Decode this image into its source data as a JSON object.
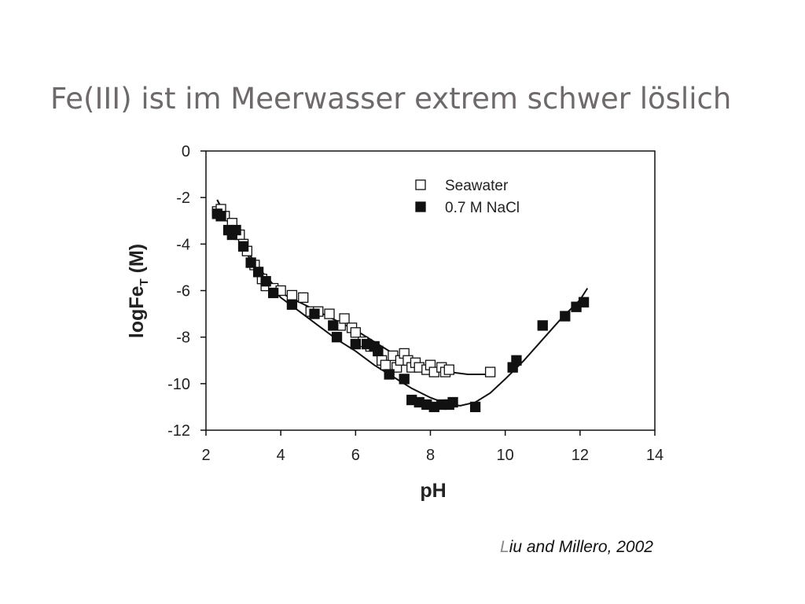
{
  "slide": {
    "title": "Fe(III) ist im Meerwasser extrem schwer löslich",
    "citation_first": "L",
    "citation_rest": "iu and Millero, 2002"
  },
  "chart_data": {
    "type": "scatter",
    "xlabel": "pH",
    "ylabel_main": "logFe",
    "ylabel_sub": "T",
    "ylabel_unit": " (M)",
    "xlim": [
      2,
      14
    ],
    "ylim": [
      -12,
      0
    ],
    "xticks": [
      2,
      4,
      6,
      8,
      10,
      12,
      14
    ],
    "yticks": [
      0,
      -2,
      -4,
      -6,
      -8,
      -10,
      -12
    ],
    "grid": false,
    "legend_position": "top-right",
    "series": [
      {
        "name": "Seawater",
        "marker": "open-square",
        "color": "#111111",
        "points": [
          [
            2.3,
            -2.6
          ],
          [
            2.4,
            -2.5
          ],
          [
            2.5,
            -2.8
          ],
          [
            2.7,
            -3.1
          ],
          [
            2.9,
            -3.6
          ],
          [
            3.0,
            -4.0
          ],
          [
            3.1,
            -4.3
          ],
          [
            3.3,
            -4.9
          ],
          [
            3.5,
            -5.5
          ],
          [
            3.6,
            -5.8
          ],
          [
            3.8,
            -5.9
          ],
          [
            4.0,
            -6.0
          ],
          [
            4.3,
            -6.2
          ],
          [
            4.6,
            -6.3
          ],
          [
            4.8,
            -6.9
          ],
          [
            5.0,
            -6.9
          ],
          [
            5.3,
            -7.0
          ],
          [
            5.6,
            -7.5
          ],
          [
            5.7,
            -7.2
          ],
          [
            5.9,
            -7.6
          ],
          [
            6.0,
            -7.8
          ],
          [
            6.2,
            -8.2
          ],
          [
            6.4,
            -8.4
          ],
          [
            6.5,
            -8.4
          ],
          [
            6.6,
            -8.6
          ],
          [
            6.7,
            -9.0
          ],
          [
            6.8,
            -9.2
          ],
          [
            7.0,
            -8.8
          ],
          [
            7.1,
            -9.3
          ],
          [
            7.2,
            -9.0
          ],
          [
            7.3,
            -8.7
          ],
          [
            7.4,
            -9.0
          ],
          [
            7.5,
            -9.3
          ],
          [
            7.6,
            -9.1
          ],
          [
            7.7,
            -9.3
          ],
          [
            7.9,
            -9.4
          ],
          [
            8.0,
            -9.2
          ],
          [
            8.1,
            -9.5
          ],
          [
            8.3,
            -9.3
          ],
          [
            8.4,
            -9.5
          ],
          [
            8.5,
            -9.4
          ],
          [
            9.6,
            -9.5
          ]
        ]
      },
      {
        "name": "0.7 M NaCl",
        "marker": "filled-square",
        "color": "#111111",
        "points": [
          [
            2.3,
            -2.7
          ],
          [
            2.4,
            -2.8
          ],
          [
            2.6,
            -3.4
          ],
          [
            2.7,
            -3.6
          ],
          [
            2.8,
            -3.4
          ],
          [
            3.0,
            -4.1
          ],
          [
            3.2,
            -4.8
          ],
          [
            3.4,
            -5.2
          ],
          [
            3.6,
            -5.6
          ],
          [
            3.8,
            -6.1
          ],
          [
            4.3,
            -6.6
          ],
          [
            4.9,
            -7.0
          ],
          [
            5.4,
            -7.5
          ],
          [
            5.5,
            -8.0
          ],
          [
            6.0,
            -8.3
          ],
          [
            6.3,
            -8.3
          ],
          [
            6.5,
            -8.4
          ],
          [
            6.6,
            -8.6
          ],
          [
            6.9,
            -9.6
          ],
          [
            7.3,
            -9.8
          ],
          [
            7.5,
            -10.7
          ],
          [
            7.7,
            -10.8
          ],
          [
            7.9,
            -10.9
          ],
          [
            8.1,
            -11.0
          ],
          [
            8.3,
            -10.9
          ],
          [
            8.5,
            -10.9
          ],
          [
            8.6,
            -10.8
          ],
          [
            9.2,
            -11.0
          ],
          [
            10.2,
            -9.3
          ],
          [
            10.3,
            -9.0
          ],
          [
            11.0,
            -7.5
          ],
          [
            11.6,
            -7.1
          ],
          [
            11.9,
            -6.7
          ],
          [
            12.1,
            -6.5
          ]
        ]
      }
    ],
    "curves": [
      {
        "name": "",
        "points": [
          [
            2.3,
            -2.1
          ],
          [
            2.6,
            -3.1
          ],
          [
            3.0,
            -4.1
          ],
          [
            3.5,
            -5.2
          ],
          [
            4.0,
            -6.1
          ],
          [
            4.5,
            -6.5
          ],
          [
            5.0,
            -6.9
          ],
          [
            5.5,
            -7.3
          ],
          [
            6.0,
            -7.7
          ],
          [
            6.5,
            -8.2
          ],
          [
            7.0,
            -8.7
          ],
          [
            7.5,
            -9.1
          ],
          [
            8.0,
            -9.4
          ],
          [
            8.5,
            -9.5
          ],
          [
            9.0,
            -9.6
          ],
          [
            9.5,
            -9.6
          ]
        ]
      },
      {
        "name": "",
        "points": [
          [
            2.3,
            -2.1
          ],
          [
            2.6,
            -3.0
          ],
          [
            3.0,
            -4.2
          ],
          [
            3.5,
            -5.4
          ],
          [
            4.0,
            -6.3
          ],
          [
            4.5,
            -6.9
          ],
          [
            5.0,
            -7.5
          ],
          [
            5.5,
            -8.1
          ],
          [
            6.0,
            -8.6
          ],
          [
            6.5,
            -9.2
          ],
          [
            7.0,
            -9.7
          ],
          [
            7.5,
            -10.2
          ],
          [
            8.0,
            -10.6
          ],
          [
            8.5,
            -10.9
          ],
          [
            8.8,
            -10.95
          ],
          [
            9.2,
            -10.8
          ],
          [
            9.6,
            -10.4
          ],
          [
            10.0,
            -9.8
          ],
          [
            10.5,
            -9.0
          ],
          [
            11.0,
            -8.1
          ],
          [
            11.5,
            -7.2
          ],
          [
            12.0,
            -6.4
          ],
          [
            12.2,
            -5.9
          ]
        ]
      }
    ]
  }
}
